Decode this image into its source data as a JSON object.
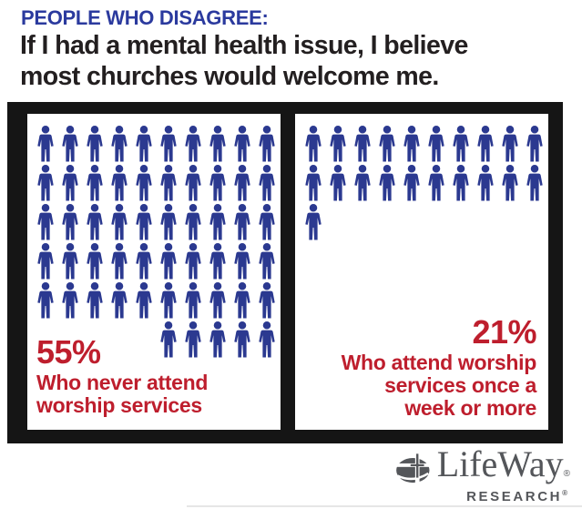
{
  "header": {
    "eyebrow": "PEOPLE WHO DISAGREE:",
    "title_line1": "If I had a mental health issue, I believe",
    "title_line2": "most churches would welcome me."
  },
  "chart_data": {
    "type": "pictograph",
    "title": "People who disagree: If I had a mental health issue, I believe most churches would welcome me.",
    "icon": "person",
    "categories": [
      "Who never attend worship services",
      "Who attend worship services once a week or more"
    ],
    "values": [
      55,
      21
    ],
    "panels": [
      {
        "percent_label": "55%",
        "value": 55,
        "icon_count": 55,
        "columns": 10,
        "last_row_align": "right",
        "label_line1": "Who never attend",
        "label_line2": "worship services"
      },
      {
        "percent_label": "21%",
        "value": 21,
        "icon_count": 21,
        "columns": 10,
        "last_row_align": "left",
        "label_line1": "Who attend worship",
        "label_line2": "services once a",
        "label_line3": "week or more"
      }
    ]
  },
  "colors": {
    "heading_blue": "#2B3A9E",
    "icon_blue": "#2B3990",
    "value_red": "#BE1E2D",
    "frame_black": "#151515",
    "title_black": "#231F20",
    "logo_gray": "#54565A"
  },
  "footer": {
    "brand": "LifeWay",
    "sub_brand": "RESEARCH",
    "registered_mark": "®"
  }
}
